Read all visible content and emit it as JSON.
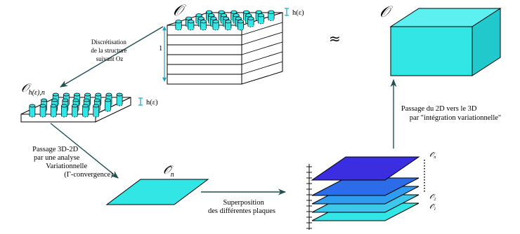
{
  "labels": {
    "domain_top": "𝒪",
    "domain_right": "𝒪",
    "approx": "≈",
    "thickness_top": "h(ε)",
    "thickness_plate": "h(ε)",
    "height_one": "1",
    "plate_label_main": "𝒪",
    "plate_label_sub": "h(ε),n",
    "limit_domain_main": "𝒪̂",
    "limit_domain_sub": "n",
    "discretisation": [
      "Discrétisation",
      "de la structure",
      "suivant Oz"
    ],
    "passage_3d2d": [
      "Passage 3D-2D",
      "par une analyse",
      "Variationnelle",
      "(Γ-convergence)"
    ],
    "superposition": [
      "Superposition",
      "des différentes plaques"
    ],
    "passage_2d3d": [
      "Passage du 2D vers le 3D",
      "par \"intégration variationnelle\""
    ],
    "stack_top": "𝒪̂",
    "stack_top_sub": "n",
    "stack_2": "𝒪̂",
    "stack_2_sub": "2",
    "stack_1": "𝒪̂",
    "stack_1_sub": "1"
  },
  "colors": {
    "cyan": "#33e6e6",
    "cyan_dark": "#1fb8bf",
    "blue_light": "#3cc8ec",
    "blue_mid": "#2f9cf0",
    "blue_deep": "#2c6ce8",
    "blue_navy": "#3a2ee0",
    "arrow": "#1f4f4f"
  }
}
